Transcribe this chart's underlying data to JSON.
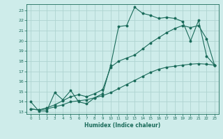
{
  "xlabel": "Humidex (Indice chaleur)",
  "bg_color": "#ceecea",
  "grid_color": "#aed4d0",
  "line_color": "#1a6b5a",
  "xlim": [
    -0.5,
    23.5
  ],
  "ylim": [
    12.8,
    23.6
  ],
  "yticks": [
    13,
    14,
    15,
    16,
    17,
    18,
    19,
    20,
    21,
    22,
    23
  ],
  "xticks": [
    0,
    1,
    2,
    3,
    4,
    5,
    6,
    7,
    8,
    9,
    10,
    11,
    12,
    13,
    14,
    15,
    16,
    17,
    18,
    19,
    20,
    21,
    22,
    23
  ],
  "series1_x": [
    0,
    1,
    2,
    3,
    4,
    5,
    6,
    7,
    8,
    9,
    10,
    11,
    12,
    13,
    14,
    15,
    16,
    17,
    18,
    19,
    20,
    21,
    22,
    23
  ],
  "series1_y": [
    14.0,
    13.1,
    13.1,
    14.9,
    14.2,
    15.1,
    14.0,
    13.8,
    14.4,
    14.8,
    17.6,
    21.4,
    21.5,
    23.3,
    22.7,
    22.5,
    22.2,
    22.3,
    22.2,
    21.9,
    20.0,
    22.0,
    18.5,
    17.6
  ],
  "series2_x": [
    0,
    1,
    2,
    3,
    4,
    5,
    6,
    7,
    8,
    9,
    10,
    11,
    12,
    13,
    14,
    15,
    16,
    17,
    18,
    19,
    20,
    21,
    22,
    23
  ],
  "series2_y": [
    13.3,
    13.2,
    13.3,
    13.5,
    13.7,
    14.0,
    14.1,
    14.2,
    14.4,
    14.6,
    14.9,
    15.3,
    15.7,
    16.1,
    16.5,
    16.9,
    17.2,
    17.4,
    17.5,
    17.6,
    17.7,
    17.75,
    17.7,
    17.6
  ],
  "series3_x": [
    0,
    1,
    2,
    3,
    4,
    5,
    6,
    7,
    8,
    9,
    10,
    11,
    12,
    13,
    14,
    15,
    16,
    17,
    18,
    19,
    20,
    21,
    22,
    23
  ],
  "series3_y": [
    13.3,
    13.2,
    13.4,
    13.7,
    14.1,
    14.5,
    14.7,
    14.5,
    14.8,
    15.2,
    17.4,
    18.0,
    18.3,
    18.6,
    19.2,
    19.8,
    20.3,
    20.8,
    21.2,
    21.5,
    21.3,
    21.5,
    20.2,
    17.6
  ]
}
